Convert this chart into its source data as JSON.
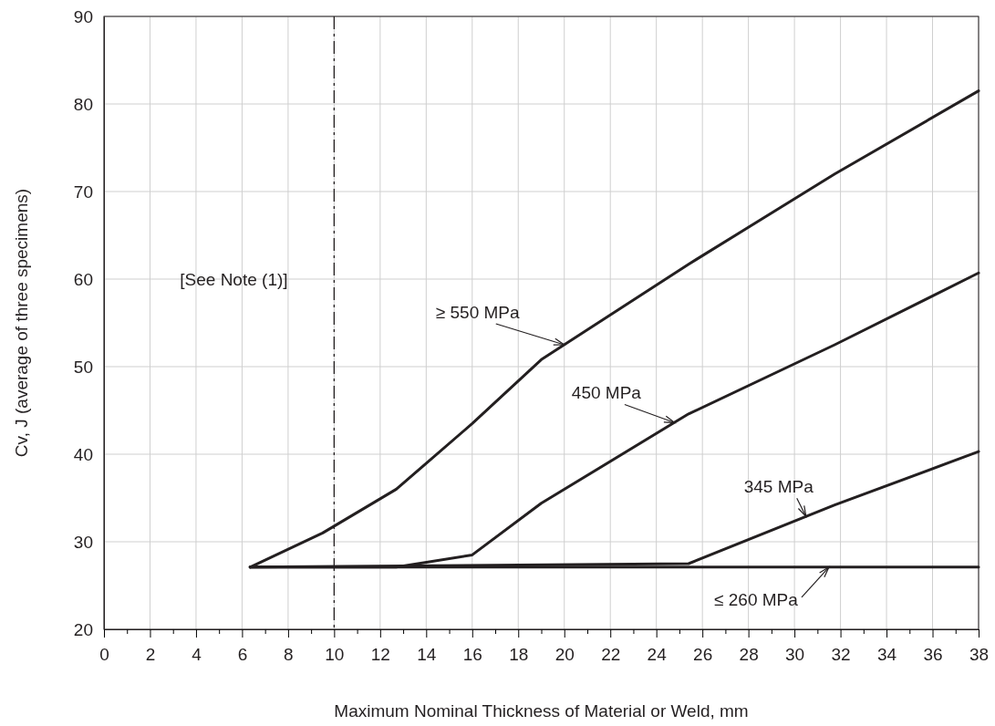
{
  "chart_data": {
    "type": "line",
    "xlabel": "Maximum Nominal Thickness of Material or Weld, mm",
    "ylabel": "Cv, J (average of three specimens)",
    "xlim": [
      0,
      38
    ],
    "ylim": [
      20,
      90
    ],
    "xticks": [
      0,
      {
        "value": 1,
        "label": null
      },
      2,
      {
        "value": 3,
        "label": null
      },
      4,
      {
        "value": 5,
        "label": null
      },
      6,
      {
        "value": 7,
        "label": null
      },
      8,
      {
        "value": 9,
        "label": null
      },
      10,
      {
        "value": 11,
        "label": null
      },
      12,
      {
        "value": 13,
        "label": null
      },
      14,
      {
        "value": 15,
        "label": null
      },
      16,
      {
        "value": 17,
        "label": null
      },
      18,
      {
        "value": 19,
        "label": null
      },
      20,
      {
        "value": 21,
        "label": null
      },
      22,
      {
        "value": 23,
        "label": null
      },
      24,
      {
        "value": 25,
        "label": null
      },
      26,
      {
        "value": 27,
        "label": null
      },
      28,
      {
        "value": 29,
        "label": null
      },
      30,
      {
        "value": 31,
        "label": null
      },
      32,
      {
        "value": 33,
        "label": null
      },
      34,
      {
        "value": 35,
        "label": null
      },
      36,
      {
        "value": 37,
        "label": null
      },
      38
    ],
    "yticks": [
      20,
      30,
      40,
      50,
      60,
      70,
      80,
      90
    ],
    "grid": true,
    "marker": "none",
    "line_style": "solid",
    "series": [
      {
        "color": "#231f20",
        "x": [
          6.35,
          9.5,
          12.7,
          16,
          19,
          25.4,
          31.75,
          38
        ],
        "values": [
          27.1,
          31,
          36,
          43.5,
          50.8,
          61.7,
          72,
          81.5
        ]
      },
      {
        "color": "#231f20",
        "x": [
          6.35,
          12.7,
          16,
          19,
          25.4,
          31.75,
          38
        ],
        "values": [
          27.1,
          27.1,
          28.5,
          34.4,
          44.6,
          52.5,
          60.7
        ]
      },
      {
        "color": "#231f20",
        "x": [
          6.35,
          25.4,
          31.75,
          38
        ],
        "values": [
          27.1,
          27.5,
          34.2,
          40.3
        ]
      },
      {
        "color": "#231f20",
        "x": [
          6.35,
          38
        ],
        "values": [
          27.1,
          27.1
        ]
      }
    ],
    "ref_lines": [
      {
        "axis": "x",
        "value": 10,
        "line_style": "dashed",
        "color": "#231f20"
      }
    ],
    "annotations": [
      "[See Note (1)]",
      {
        "text": "≥ 550 MPa",
        "x": 20,
        "y": 52.5
      },
      {
        "text": "450 MPa",
        "x": 24.8,
        "y": 43.6
      },
      {
        "text": "345 MPa",
        "x": 30.5,
        "y": 32.9
      },
      {
        "text": "≤ 260 MPa",
        "x": 31.5,
        "y": 27.1
      }
    ]
  }
}
